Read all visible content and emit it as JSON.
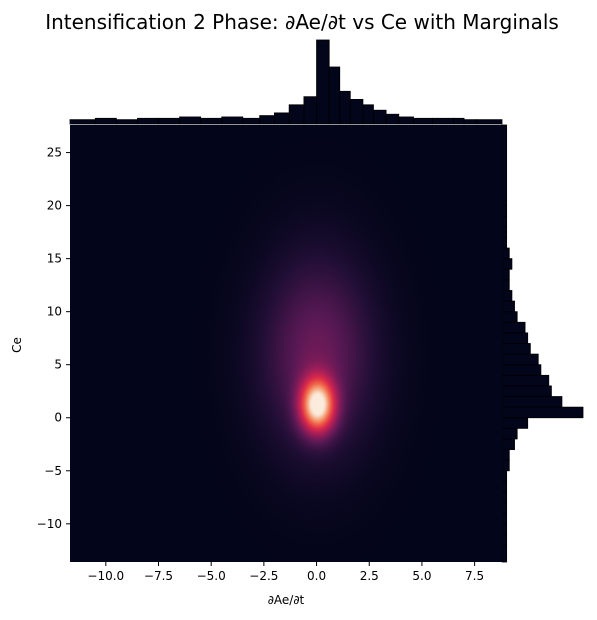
{
  "chart_data": {
    "type": "heatmap",
    "title": "Intensification 2 Phase: ∂Ae/∂t vs Ce with Marginals",
    "xlabel": "∂Ae/∂t",
    "ylabel": "Ce",
    "xlim": [
      -11.7,
      8.8
    ],
    "ylim": [
      -13.6,
      27.6
    ],
    "x_ticks": [
      -10.0,
      -7.5,
      -5.0,
      -2.5,
      0.0,
      2.5,
      5.0,
      7.5
    ],
    "x_tick_labels": [
      "−10.0",
      "−7.5",
      "−5.0",
      "−2.5",
      "0.0",
      "2.5",
      "5.0",
      "7.5"
    ],
    "y_ticks": [
      -10,
      -5,
      0,
      5,
      10,
      15,
      20,
      25
    ],
    "y_tick_labels": [
      "−10",
      "−5",
      "0",
      "5",
      "10",
      "15",
      "20",
      "25"
    ],
    "grid": false,
    "colormap": "rocket",
    "density": {
      "peak_x": 0.05,
      "peak_y": 1.2,
      "sigma_x": 0.55,
      "sigma_y": 1.7,
      "halo_sigma_x": 1.6,
      "halo_sigma_y": 5.5,
      "halo_center_y": 6.0
    },
    "top_marginal": {
      "bin_edges": [
        -11.7,
        -10.5,
        -9.5,
        -8.5,
        -7.5,
        -6.5,
        -5.5,
        -4.5,
        -3.5,
        -2.7,
        -2.0,
        -1.3,
        -0.6,
        0.0,
        0.6,
        1.1,
        1.6,
        2.2,
        2.7,
        3.3,
        3.9,
        4.6,
        5.5,
        6.5,
        7.0,
        7.6,
        8.8
      ],
      "counts": [
        1,
        2,
        1,
        2,
        2,
        3,
        2,
        3,
        2,
        4,
        6,
        12,
        18,
        60,
        40,
        22,
        16,
        12,
        8,
        5,
        3,
        2,
        2,
        2,
        1,
        1
      ]
    },
    "right_marginal": {
      "bin_edges": [
        -13.6,
        -12.0,
        -11.0,
        -10.0,
        -9.0,
        -8.0,
        -7.0,
        -6.0,
        -5.0,
        -4.0,
        -3.0,
        -2.0,
        -1.0,
        0.0,
        1.0,
        2.0,
        3.0,
        4.0,
        5.0,
        6.0,
        7.0,
        8.0,
        9.0,
        10.0,
        11.0,
        12.0,
        13.0,
        14.0,
        15.0,
        16.0,
        17.0,
        18.0,
        19.0,
        20.0,
        27.6
      ],
      "counts": [
        1,
        1,
        1,
        1,
        1,
        1,
        1,
        1,
        2,
        2,
        4,
        5,
        9,
        30,
        22,
        18,
        17,
        14,
        13,
        10,
        9,
        8,
        5,
        4,
        3,
        2,
        2,
        3,
        2,
        1,
        1,
        1,
        1,
        1
      ]
    },
    "colors": {
      "background": "#03051a",
      "bar_fill": "#03051a",
      "bar_edge": "#000000"
    }
  }
}
